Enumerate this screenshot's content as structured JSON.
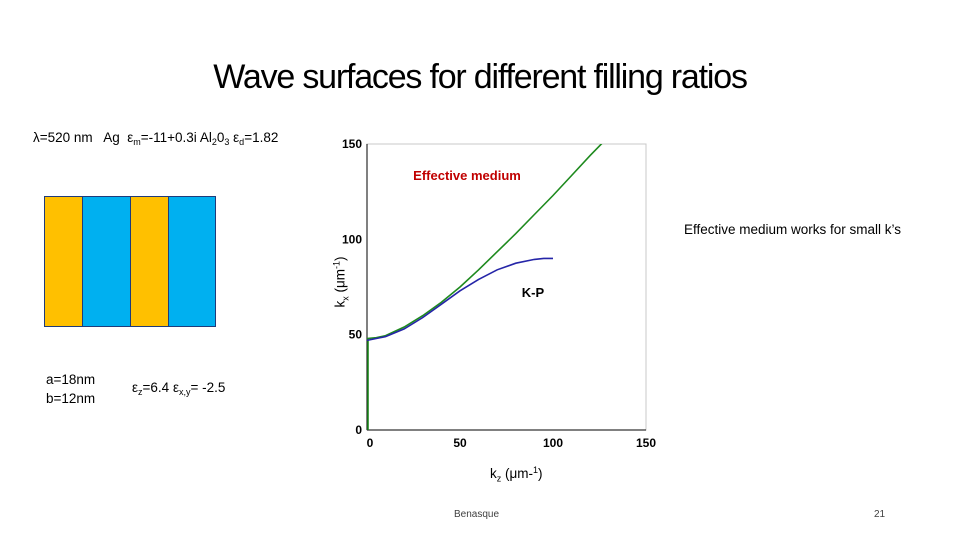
{
  "slide": {
    "title": "Wave surfaces for different filling ratios",
    "params": {
      "lambda": "λ=520 nm",
      "metal": "Ag",
      "eps_m_sym": "ε",
      "eps_m_sub": "m",
      "eps_m_val": "=-11+0.3i",
      "dielectric": "Al",
      "al_sub": "2",
      "al_o": "0",
      "o_sub": "3",
      "eps_d_sym": "ε",
      "eps_d_sub": "d",
      "eps_d_val": "=1.82"
    },
    "dims": {
      "a": "a=18nm",
      "b": "b=12nm"
    },
    "eps_eff": {
      "z_sym": "ε",
      "z_sub": "z",
      "z_val": "=6.4 ",
      "xy_sym": "ε",
      "xy_sub": "x,y",
      "xy_val": "= -2.5"
    },
    "note_right": "Effective medium works for small k’s",
    "footer": "Benasque",
    "page_number": "21"
  },
  "layers": [
    {
      "material": "Ag",
      "color": "#ffc000"
    },
    {
      "material": "Al2O3",
      "color": "#00b0f0"
    },
    {
      "material": "Ag",
      "color": "#ffc000"
    },
    {
      "material": "Al2O3",
      "color": "#00b0f0"
    }
  ],
  "chart_data": {
    "type": "line",
    "xlabel_main": "k",
    "xlabel_sub": "z",
    "xlabel_unit": " (μm-",
    "xlabel_sup": "1",
    "xlabel_end": ")",
    "ylabel_main": "k",
    "ylabel_sub": "x",
    "ylabel_unit": " (μm",
    "ylabel_sup": "-1",
    "ylabel_end": ")",
    "xlim": [
      0,
      150
    ],
    "ylim": [
      0,
      150
    ],
    "xticks": [
      "0",
      "50",
      "100",
      "150"
    ],
    "yticks": [
      "0",
      "50",
      "100",
      "150"
    ],
    "series": [
      {
        "name": "Effective medium",
        "color": "#1e8a1e",
        "x": [
          0,
          5,
          10,
          20,
          30,
          40,
          50,
          60,
          70,
          80,
          90,
          100,
          110,
          120,
          130,
          136
        ],
        "y": [
          48,
          48.4,
          49.5,
          54,
          60,
          67,
          75,
          84,
          93.5,
          103,
          113,
          123,
          133.5,
          144,
          154,
          160
        ]
      },
      {
        "name": "K-P",
        "color": "#2525a8",
        "x": [
          0,
          10,
          20,
          30,
          40,
          50,
          60,
          70,
          80,
          90,
          95,
          100
        ],
        "y": [
          47,
          49,
          53,
          59,
          66,
          73,
          79,
          84,
          87.5,
          89.5,
          90,
          90
        ]
      }
    ],
    "vertical_segment": {
      "x": 0,
      "y": [
        0,
        48
      ],
      "color": "#1e8a1e"
    }
  }
}
